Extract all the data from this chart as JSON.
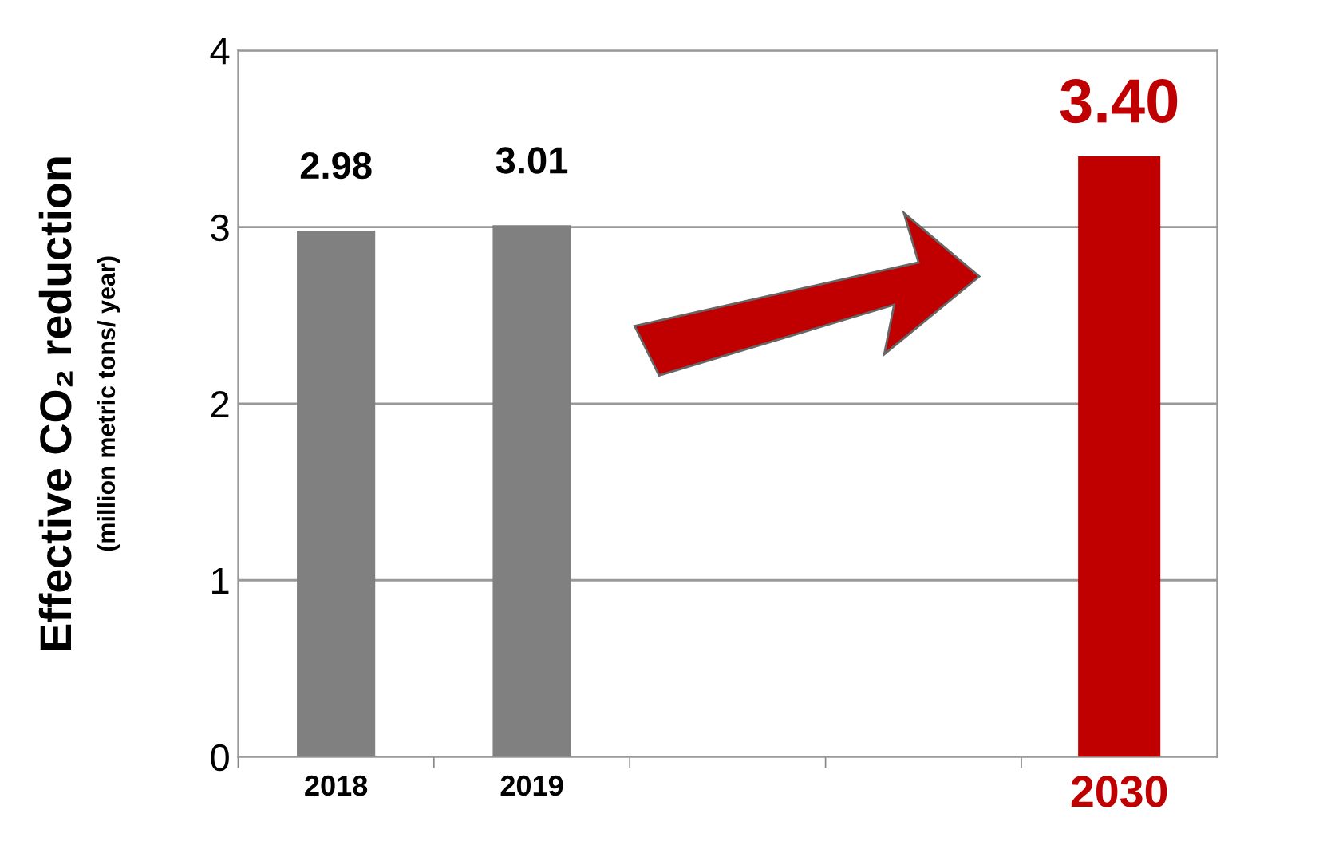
{
  "chart_data": {
    "type": "bar",
    "ylabel": "Effective CO₂ reduction\n(million metric tons/ year)",
    "categories": [
      "2018",
      "2019",
      null,
      null,
      "2030"
    ],
    "values": [
      2.98,
      3.01,
      null,
      null,
      3.4
    ],
    "colors": [
      "#808080",
      "#808080",
      "#808080",
      "#808080",
      "#c00000"
    ],
    "value_labels": [
      "2.98",
      "3.01",
      null,
      null,
      "3.40"
    ],
    "ylim": [
      0,
      4
    ],
    "yticks": [
      0,
      1,
      2,
      3,
      4
    ],
    "grid": "y",
    "legend": false
  }
}
